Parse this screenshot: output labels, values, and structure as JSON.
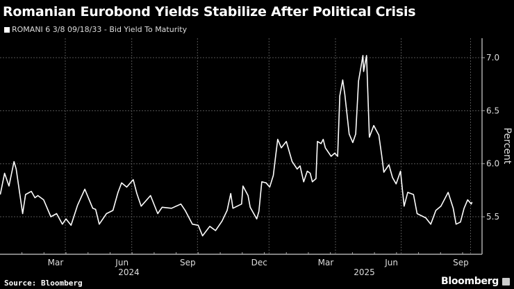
{
  "chart_data": {
    "type": "line",
    "title": "Romanian Eurobond Yields Stabilize After Political Crisis",
    "legend": [
      {
        "label": "ROMANI 6 3/8 09/18/33 - Bid Yield To Maturity",
        "color": "#ffffff"
      }
    ],
    "legend_placement": "top-left",
    "x_unit": "days since 2024-03-01",
    "xlim": [
      -90,
      575
    ],
    "ylim": [
      5.15,
      7.18
    ],
    "ylabel": "Percent",
    "xlabel": "",
    "grid": true,
    "y_ticks": [
      5.5,
      6.0,
      6.5,
      7.0
    ],
    "y_tick_labels": [
      "5.5",
      "6.0",
      "6.5",
      "7.0"
    ],
    "x_ticks": [
      0,
      92,
      183,
      282,
      374,
      465,
      561
    ],
    "x_tick_labels": [
      "Mar",
      "Jun",
      "Sep",
      "Dec",
      "Mar",
      "Jun",
      "Sep"
    ],
    "year_labels": [
      {
        "label": "2024",
        "x": 88
      },
      {
        "label": "2025",
        "x": 414
      }
    ],
    "series": [
      {
        "name": "ROMANI 6 3/8 09/18/33 - Bid Yield To Maturity",
        "x": [
          -90,
          -84,
          -78,
          -71,
          -68,
          -59,
          -55,
          -47,
          -42,
          -38,
          -30,
          -20,
          -12,
          -4,
          1,
          8,
          17,
          27,
          38,
          42,
          47,
          57,
          66,
          73,
          78,
          85,
          94,
          99,
          105,
          118,
          128,
          134,
          147,
          160,
          166,
          176,
          184,
          190,
          200,
          208,
          217,
          224,
          229,
          232,
          244,
          246,
          253,
          256,
          265,
          268,
          272,
          278,
          283,
          288,
          291,
          294,
          299,
          306,
          314,
          321,
          325,
          330,
          335,
          339,
          342,
          347,
          349,
          354,
          357,
          360,
          368,
          373,
          377,
          380,
          384,
          387,
          393,
          398,
          402,
          406,
          412,
          413,
          417,
          421,
          427,
          434,
          438,
          441,
          448,
          453,
          458,
          464,
          469,
          474,
          482,
          487,
          499,
          506,
          513,
          520,
          530,
          537,
          541,
          547,
          552,
          557,
          562,
          563
        ],
        "y": [
          5.71,
          5.91,
          5.79,
          6.02,
          5.95,
          5.53,
          5.71,
          5.74,
          5.68,
          5.7,
          5.66,
          5.5,
          5.53,
          5.43,
          5.48,
          5.42,
          5.61,
          5.76,
          5.58,
          5.57,
          5.43,
          5.53,
          5.56,
          5.73,
          5.82,
          5.78,
          5.85,
          5.72,
          5.6,
          5.7,
          5.53,
          5.59,
          5.58,
          5.62,
          5.56,
          5.43,
          5.42,
          5.32,
          5.41,
          5.37,
          5.46,
          5.56,
          5.72,
          5.58,
          5.62,
          5.79,
          5.7,
          5.59,
          5.48,
          5.55,
          5.83,
          5.82,
          5.78,
          5.89,
          6.06,
          6.23,
          6.15,
          6.21,
          6.02,
          5.95,
          5.98,
          5.83,
          5.93,
          5.91,
          5.83,
          5.86,
          6.21,
          6.19,
          6.23,
          6.15,
          6.07,
          6.1,
          6.07,
          6.64,
          6.79,
          6.65,
          6.28,
          6.2,
          6.28,
          6.78,
          7.02,
          6.87,
          7.02,
          6.25,
          6.36,
          6.27,
          6.08,
          5.92,
          5.99,
          5.87,
          5.81,
          5.93,
          5.6,
          5.73,
          5.71,
          5.53,
          5.49,
          5.43,
          5.56,
          5.6,
          5.73,
          5.58,
          5.43,
          5.45,
          5.58,
          5.66,
          5.62,
          5.64
        ],
        "color": "#ffffff"
      }
    ],
    "source": "Source: Bloomberg"
  },
  "branding": {
    "logo": "Bloomberg"
  }
}
